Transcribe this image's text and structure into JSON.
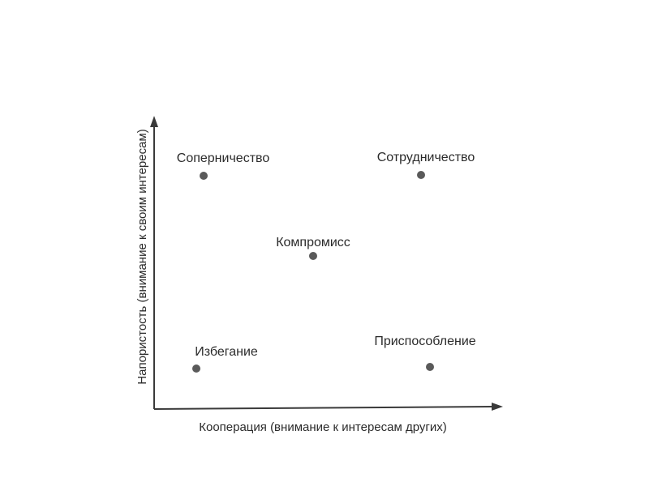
{
  "diagram": {
    "axes": {
      "x_label": "Кооперация (внимание к интересам других)",
      "y_label": "Напористость (внимание к своим интересам)"
    },
    "points": [
      {
        "label": "Соперничество"
      },
      {
        "label": "Сотрудничество"
      },
      {
        "label": "Компромисс"
      },
      {
        "label": "Избегание"
      },
      {
        "label": "Приспособление"
      }
    ],
    "colors": {
      "axis": "#3a3a3a",
      "marker": "#5a5a5a",
      "text": "#2b2b2b"
    }
  }
}
